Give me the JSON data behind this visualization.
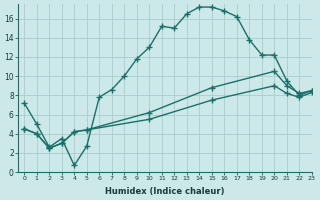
{
  "xlabel": "Humidex (Indice chaleur)",
  "background_color": "#cce8e8",
  "grid_color": "#aacccc",
  "line_color": "#1a7068",
  "xlim": [
    -0.5,
    23
  ],
  "ylim": [
    0,
    17.5
  ],
  "xticks": [
    0,
    1,
    2,
    3,
    4,
    5,
    6,
    7,
    8,
    9,
    10,
    11,
    12,
    13,
    14,
    15,
    16,
    17,
    18,
    19,
    20,
    21,
    22,
    23
  ],
  "yticks": [
    0,
    2,
    4,
    6,
    8,
    10,
    12,
    14,
    16
  ],
  "line1_x": [
    0,
    1,
    2,
    3,
    4,
    5,
    6,
    7,
    8,
    9,
    10,
    11,
    12,
    13,
    14,
    15,
    16,
    17,
    18,
    19,
    20,
    21,
    22,
    23
  ],
  "line1_y": [
    7.2,
    5.0,
    2.6,
    3.5,
    0.7,
    2.7,
    7.8,
    8.6,
    10.0,
    11.8,
    13.0,
    15.2,
    15.0,
    16.5,
    17.2,
    17.2,
    16.8,
    16.2,
    13.8,
    12.2,
    12.2,
    9.5,
    8.0,
    8.5
  ],
  "line2_x": [
    0,
    1,
    2,
    3,
    4,
    5,
    10,
    15,
    20,
    21,
    22,
    23
  ],
  "line2_y": [
    4.5,
    4.0,
    2.5,
    3.0,
    4.2,
    4.4,
    6.2,
    8.8,
    10.5,
    9.0,
    8.2,
    8.5
  ],
  "line3_x": [
    0,
    1,
    2,
    3,
    4,
    5,
    10,
    15,
    20,
    21,
    22,
    23
  ],
  "line3_y": [
    4.5,
    4.0,
    2.5,
    3.0,
    4.2,
    4.4,
    5.5,
    7.5,
    9.0,
    8.2,
    7.8,
    8.3
  ]
}
